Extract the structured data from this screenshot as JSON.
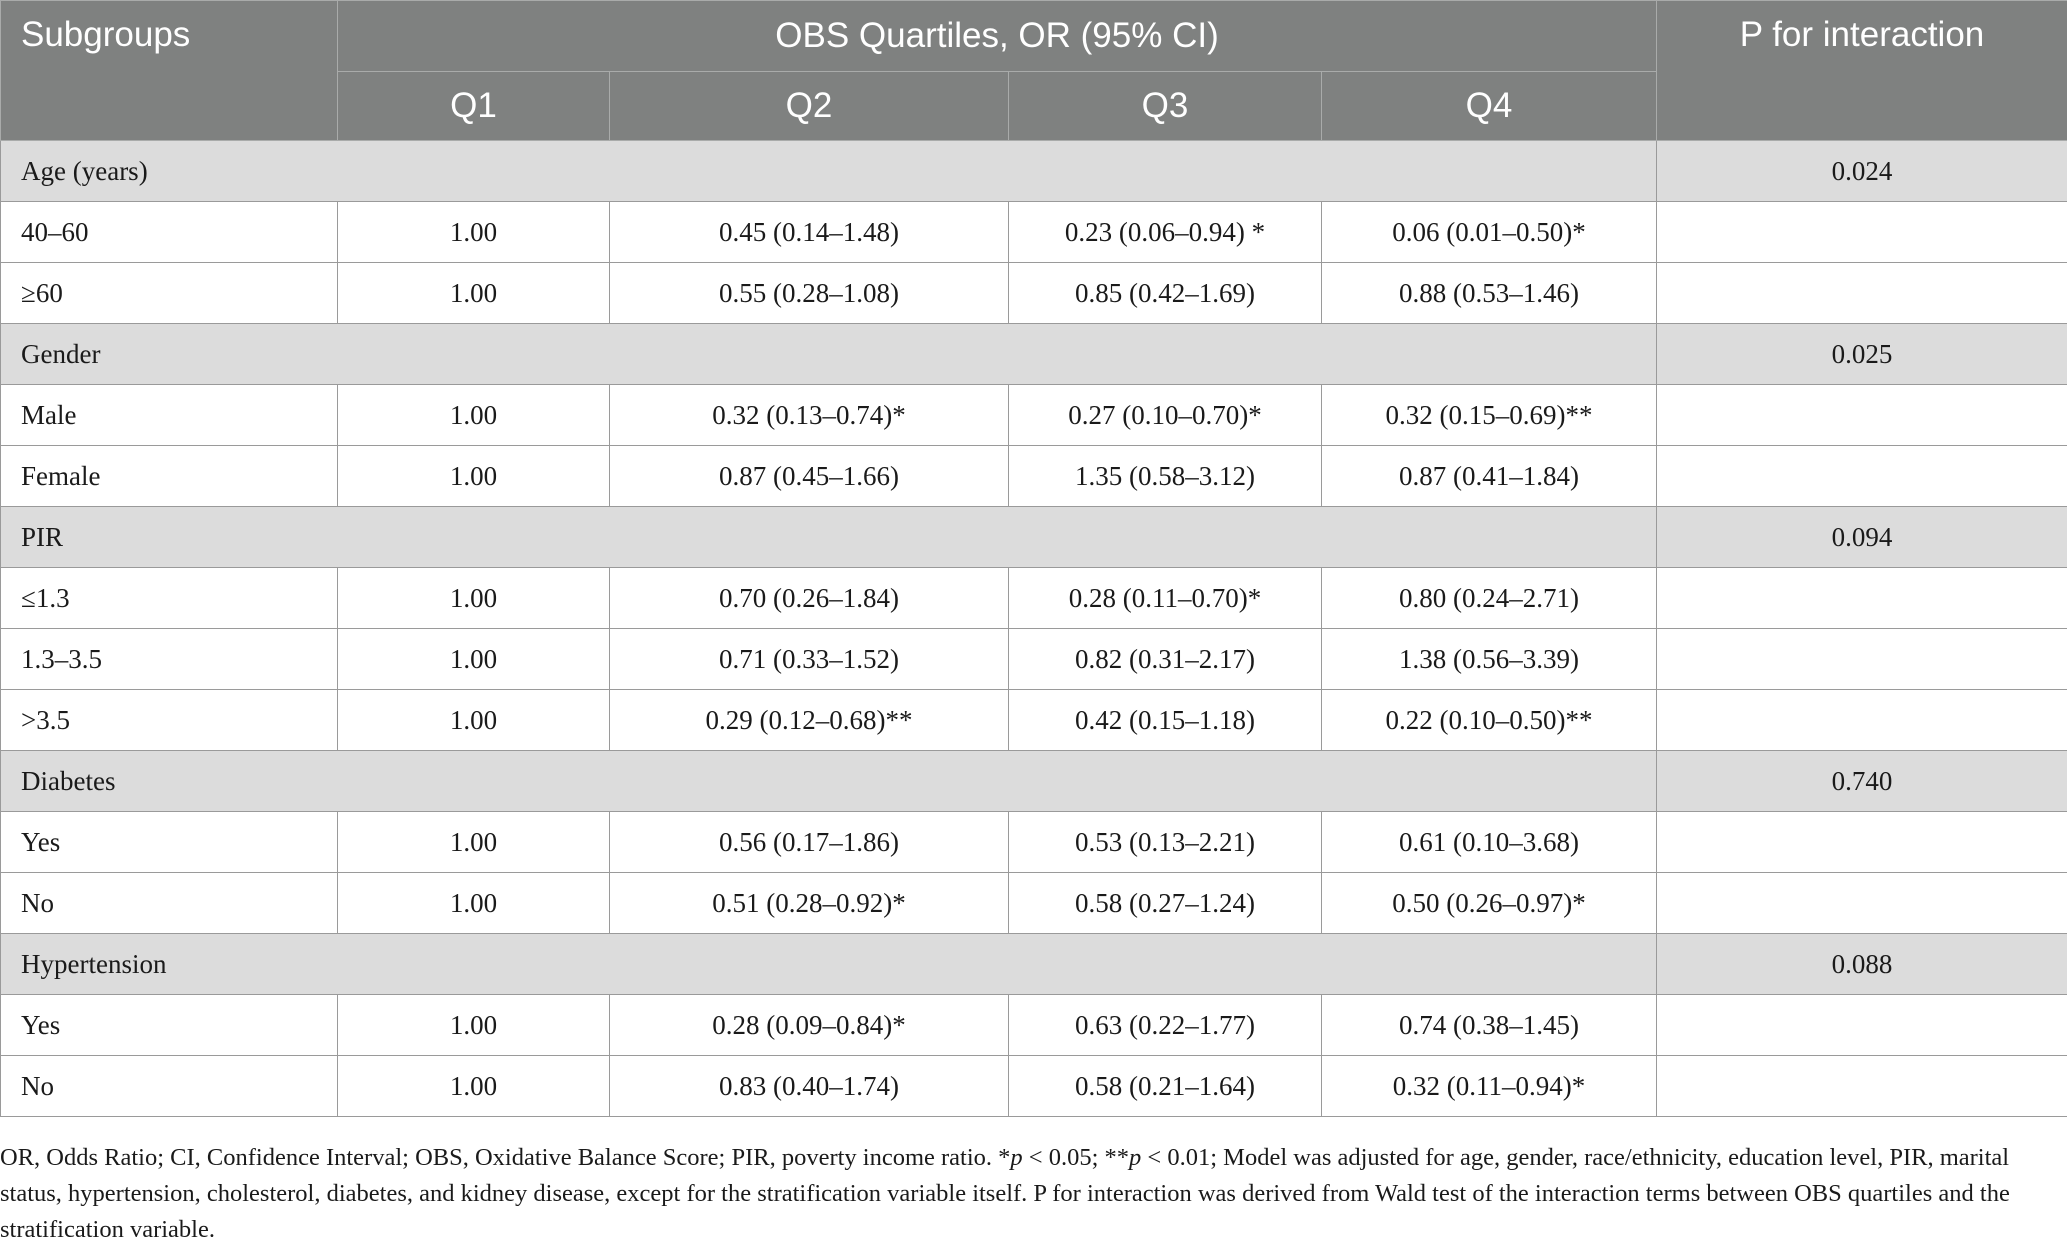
{
  "table": {
    "header": {
      "subgroups": "Subgroups",
      "quartiles_title": "OBS Quartiles, OR (95% CI)",
      "p_interaction": "P for interaction",
      "quartiles": [
        "Q1",
        "Q2",
        "Q3",
        "Q4"
      ]
    },
    "groups": [
      {
        "name": "Age (years)",
        "p": "0.024",
        "rows": [
          {
            "label": "40–60",
            "q1": "1.00",
            "q2": "0.45 (0.14–1.48)",
            "q3": "0.23 (0.06–0.94) *",
            "q4": "0.06 (0.01–0.50)*"
          },
          {
            "label": "≥60",
            "q1": "1.00",
            "q2": "0.55 (0.28–1.08)",
            "q3": "0.85 (0.42–1.69)",
            "q4": "0.88 (0.53–1.46)"
          }
        ]
      },
      {
        "name": "Gender",
        "p": "0.025",
        "rows": [
          {
            "label": "Male",
            "q1": "1.00",
            "q2": "0.32 (0.13–0.74)*",
            "q3": "0.27 (0.10–0.70)*",
            "q4": "0.32 (0.15–0.69)**"
          },
          {
            "label": "Female",
            "q1": "1.00",
            "q2": "0.87 (0.45–1.66)",
            "q3": "1.35 (0.58–3.12)",
            "q4": "0.87 (0.41–1.84)"
          }
        ]
      },
      {
        "name": "PIR",
        "p": "0.094",
        "rows": [
          {
            "label": "≤1.3",
            "q1": "1.00",
            "q2": "0.70 (0.26–1.84)",
            "q3": "0.28 (0.11–0.70)*",
            "q4": "0.80 (0.24–2.71)"
          },
          {
            "label": "1.3–3.5",
            "q1": "1.00",
            "q2": "0.71 (0.33–1.52)",
            "q3": "0.82 (0.31–2.17)",
            "q4": "1.38 (0.56–3.39)"
          },
          {
            "label": ">3.5",
            "q1": "1.00",
            "q2": "0.29 (0.12–0.68)**",
            "q3": "0.42 (0.15–1.18)",
            "q4": "0.22 (0.10–0.50)**"
          }
        ]
      },
      {
        "name": "Diabetes",
        "p": "0.740",
        "rows": [
          {
            "label": "Yes",
            "q1": "1.00",
            "q2": "0.56 (0.17–1.86)",
            "q3": "0.53 (0.13–2.21)",
            "q4": "0.61 (0.10–3.68)"
          },
          {
            "label": "No",
            "q1": "1.00",
            "q2": "0.51 (0.28–0.92)*",
            "q3": "0.58 (0.27–1.24)",
            "q4": "0.50 (0.26–0.97)*"
          }
        ]
      },
      {
        "name": "Hypertension",
        "p": "0.088",
        "rows": [
          {
            "label": "Yes",
            "q1": "1.00",
            "q2": "0.28 (0.09–0.84)*",
            "q3": "0.63 (0.22–1.77)",
            "q4": "0.74 (0.38–1.45)"
          },
          {
            "label": "No",
            "q1": "1.00",
            "q2": "0.83 (0.40–1.74)",
            "q3": "0.58 (0.21–1.64)",
            "q4": "0.32 (0.11–0.94)*"
          }
        ]
      }
    ]
  },
  "footnote": {
    "part1": "OR, Odds Ratio; CI, Confidence Interval; OBS, Oxidative Balance Score; PIR, poverty income ratio. *",
    "p_sym1": "p",
    "part2": " < 0.05; **",
    "p_sym2": "p",
    "part3": " < 0.01; Model was adjusted for age, gender, race/ethnicity, education level, PIR, marital status, hypertension, cholesterol, diabetes, and kidney disease, except for the stratification variable itself. P for interaction was derived from Wald test of the interaction terms between OBS quartiles and the stratification variable."
  }
}
